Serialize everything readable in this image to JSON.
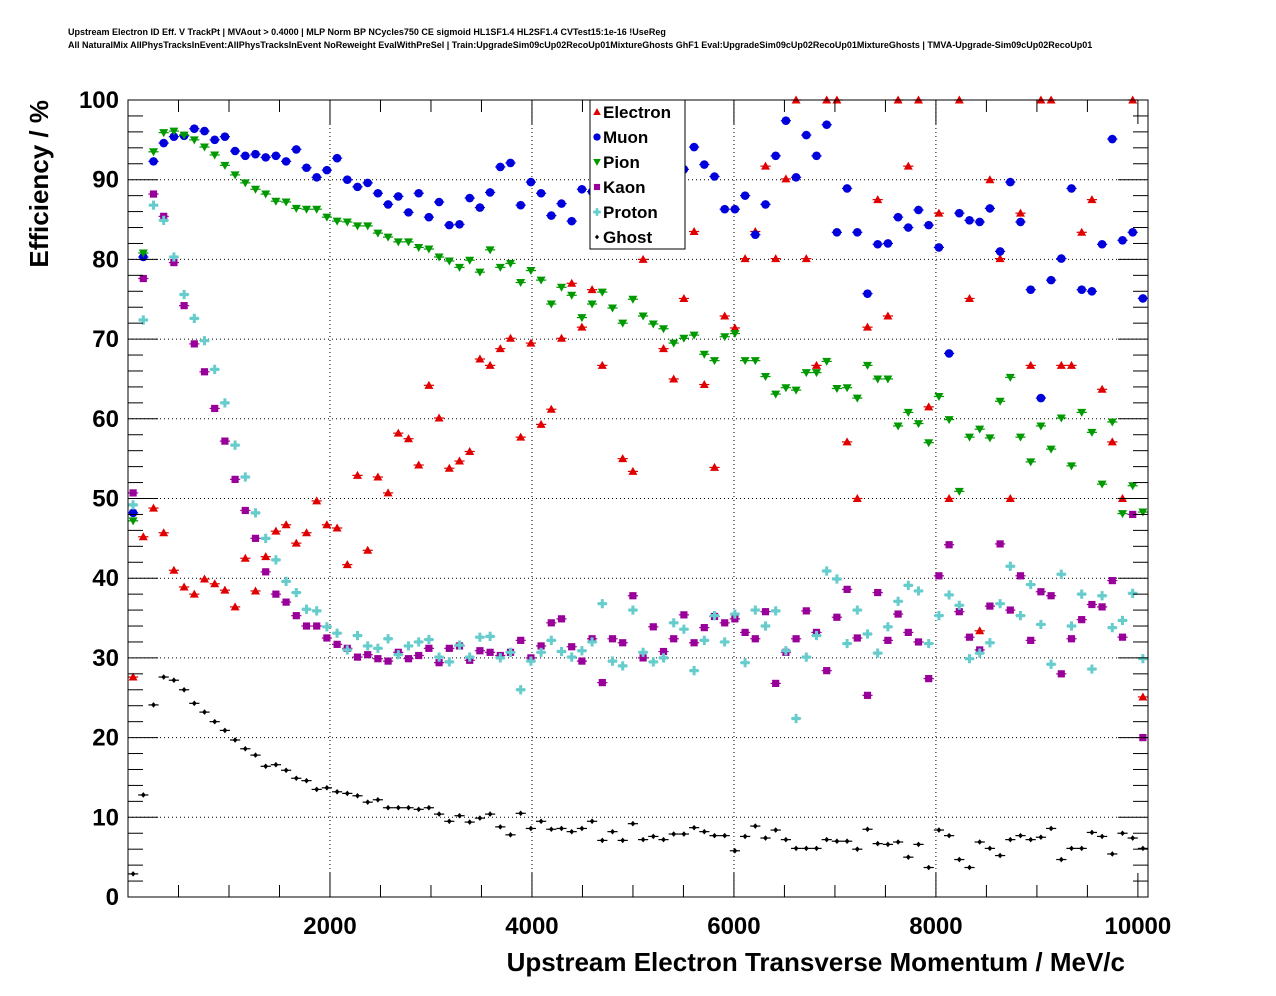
{
  "chart_data": {
    "type": "scatter",
    "title_lines": [
      "Upstream Electron ID Eff. V TrackPt | MVAout > 0.4000 | MLP Norm BP NCycles750 CE sigmoid HL1SF1.4 HL2SF1.4 CVTest15:1e-16 !UseReg",
      "All NaturalMix AllPhysTracksInEvent:AllPhysTracksInEvent NoReweight EvalWithPreSel | Train:UpgradeSim09cUp02RecoUp01MixtureGhosts GhF1 Eval:UpgradeSim09cUp02RecoUp01MixtureGhosts | TMVA-Upgrade-Sim09cUp02RecoUp01"
    ],
    "xlabel": "Upstream Electron Transverse Momentum / MeV/c",
    "ylabel": "Efficiency / %",
    "xlim": [
      0,
      10100
    ],
    "ylim": [
      0,
      100
    ],
    "xticks": [
      "2000",
      "4000",
      "6000",
      "8000",
      "10000"
    ],
    "yticks": [
      "0",
      "10",
      "20",
      "30",
      "40",
      "50",
      "60",
      "70",
      "80",
      "90",
      "100"
    ],
    "grid": true,
    "legend_position": "top-center",
    "bin_first_center": 50.5,
    "bin_width": 101,
    "series": [
      {
        "name": "Electron",
        "color": "#e00000",
        "marker": "triangle-up",
        "values": [
          27.6,
          45.2,
          48.8,
          45.7,
          41,
          38.9,
          38,
          39.9,
          39.3,
          38.5,
          36.4,
          42.5,
          38.4,
          42.7,
          45.9,
          46.7,
          44.4,
          45.7,
          49.7,
          46.7,
          46.3,
          41.7,
          52.9,
          43.5,
          52.7,
          50.7,
          58.2,
          57.5,
          54.2,
          64.2,
          60.1,
          53.8,
          54.7,
          55.9,
          67.5,
          66.7,
          68.8,
          70.1,
          57.7,
          69.5,
          59.3,
          61.2,
          70.1,
          77.0,
          71.5,
          76.2,
          66.7,
          87.5,
          55.0,
          53.4,
          80.0,
          83.3,
          68.8,
          65.0,
          75.1,
          83.5,
          64.3,
          53.9,
          72.9,
          71.4,
          80.1,
          83.5,
          91.7,
          80.1,
          90.1,
          100,
          80.1,
          66.7,
          100,
          100,
          57.1,
          50,
          71.5,
          87.5,
          72.9,
          100,
          91.7,
          100,
          61.5,
          85.8,
          50,
          100,
          75.1,
          33.4,
          90,
          80.1,
          50,
          85.8,
          66.7,
          100,
          100,
          66.7,
          66.7,
          83.4,
          87.5,
          63.7,
          57.1,
          50,
          100,
          25.1
        ]
      },
      {
        "name": "Muon",
        "color": "#0000dd",
        "marker": "circle",
        "values": [
          48.2,
          80.3,
          92.3,
          94.6,
          95.4,
          95.5,
          96.4,
          96.1,
          95.0,
          95.4,
          93.6,
          93.0,
          93.2,
          92.8,
          93.0,
          92.3,
          93.8,
          91.5,
          90.3,
          91.2,
          92.7,
          90.0,
          89.1,
          89.6,
          88.3,
          86.9,
          87.9,
          85.9,
          88.3,
          85.3,
          87.2,
          84.3,
          84.4,
          87.7,
          86.5,
          88.4,
          91.6,
          92.1,
          86.8,
          89.7,
          88.3,
          85.5,
          87.0,
          84.8,
          88.8,
          88.5,
          84.9,
          88.8,
          89.0,
          86.5,
          88.0,
          87.0,
          88.5,
          90.0,
          91.3,
          94.1,
          91.9,
          90.4,
          86.3,
          86.3,
          88.0,
          83.1,
          86.9,
          93.0,
          97.4,
          90.3,
          95.6,
          93.0,
          96.9,
          83.4,
          88.9,
          83.4,
          75.7,
          81.9,
          82.0,
          85.3,
          84.0,
          86.2,
          84.3,
          81.5,
          68.2,
          85.8,
          84.9,
          84.7,
          86.4,
          81.0,
          89.7,
          84.7,
          76.2,
          62.6,
          77.4,
          80.1,
          88.9,
          76.2,
          76.0,
          81.9,
          95.1,
          82.4,
          83.4,
          75.1
        ]
      },
      {
        "name": "Pion",
        "color": "#009900",
        "marker": "triangle-down",
        "values": [
          47.2,
          80.8,
          93.5,
          95.9,
          96.1,
          95.6,
          95.0,
          94.1,
          93.1,
          91.8,
          90.6,
          89.6,
          88.8,
          88.2,
          87.3,
          87.2,
          86.4,
          86.3,
          86.3,
          85.3,
          84.8,
          84.7,
          84.2,
          84.2,
          83.3,
          82.8,
          82.2,
          82.2,
          81.5,
          81.3,
          80.3,
          79.8,
          79.0,
          79.9,
          78.4,
          81.2,
          79.0,
          79.5,
          77.1,
          78.6,
          77.4,
          74.4,
          76.5,
          75.5,
          72.7,
          74.4,
          75.9,
          73.9,
          72.0,
          75.0,
          72.9,
          71.9,
          71.3,
          69.5,
          70.1,
          70.5,
          68.1,
          67.3,
          70.3,
          70.7,
          67.3,
          67.3,
          65.3,
          63.1,
          63.9,
          63.6,
          65.8,
          65.8,
          67.2,
          63.8,
          63.9,
          62.6,
          66.7,
          65.0,
          65.0,
          59.1,
          60.8,
          59.4,
          57.0,
          62.8,
          59.9,
          50.9,
          57.7,
          58.7,
          57.6,
          62.2,
          65.2,
          57.7,
          54.6,
          59.1,
          56.2,
          60.1,
          54.1,
          60.8,
          58.3,
          51.8,
          59.6,
          48.1,
          51.6,
          48.3
        ]
      },
      {
        "name": "Kaon",
        "color": "#990099",
        "marker": "square",
        "values": [
          50.7,
          77.6,
          88.2,
          85.4,
          79.6,
          74.2,
          69.4,
          65.9,
          61.3,
          57.2,
          52.4,
          48.5,
          45,
          40.8,
          38,
          37.0,
          35.3,
          34,
          34,
          32.5,
          31.7,
          31.2,
          30.1,
          30.4,
          29.9,
          29.6,
          30.7,
          29.9,
          30.3,
          31.2,
          29.4,
          31.2,
          31.5,
          29.7,
          30.9,
          30.7,
          30.3,
          30.7,
          32.2,
          30.0,
          31.5,
          34.4,
          34.9,
          31.4,
          29.6,
          32.4,
          26.9,
          32.4,
          31.9,
          37.8,
          30.0,
          33.9,
          30.8,
          32.4,
          35.4,
          31.9,
          33.8,
          35.2,
          34.4,
          34.9,
          33.2,
          32.4,
          35.8,
          26.8,
          30.7,
          32.4,
          35.9,
          33.2,
          28.4,
          35.1,
          38.6,
          32.5,
          25.3,
          38.2,
          32.2,
          35.5,
          33.2,
          32.0,
          27.4,
          40.3,
          44.2,
          35.8,
          32.6,
          31.0,
          36.5,
          44.3,
          36.0,
          40.3,
          32.2,
          38.3,
          37.8,
          28.0,
          32.4,
          34.8,
          36.7,
          36.4,
          39.7,
          32.6,
          48.0,
          20.0
        ]
      },
      {
        "name": "Proton",
        "color": "#66cccc",
        "marker": "cross",
        "values": [
          49.2,
          72.4,
          86.8,
          84.9,
          80.3,
          75.6,
          72.6,
          69.8,
          66.2,
          62.0,
          56.7,
          52.7,
          48.2,
          45.0,
          42.3,
          39.6,
          38.2,
          36.1,
          35.9,
          33.9,
          33.1,
          31.0,
          32.8,
          31.5,
          31.2,
          32.4,
          30.4,
          31.5,
          32.0,
          32.3,
          30.1,
          29.5,
          31.6,
          30.1,
          32.6,
          32.7,
          30.0,
          30.7,
          26.0,
          29.6,
          30.7,
          32.2,
          30.8,
          30.1,
          30.9,
          32.0,
          36.8,
          29.6,
          29.0,
          36.0,
          30.7,
          29.5,
          30.0,
          34.4,
          33.6,
          28.4,
          32.2,
          35.3,
          32.0,
          35.5,
          29.4,
          36.0,
          34.0,
          35.9,
          30.9,
          22.4,
          30.1,
          32.8,
          40.9,
          39.9,
          31.8,
          36.0,
          33.0,
          30.6,
          33.9,
          37.1,
          39.1,
          38.4,
          31.8,
          35.3,
          37.9,
          36.6,
          29.9,
          30.6,
          31.9,
          36.8,
          41.5,
          35.3,
          39.2,
          34.2,
          29.2,
          40.5,
          34.0,
          38.0,
          28.6,
          37.8,
          33.8,
          34.7,
          38.1,
          29.9
        ]
      },
      {
        "name": "Ghost",
        "color": "#000000",
        "marker": "diamond",
        "values": [
          2.9,
          12.8,
          24.1,
          27.6,
          27.2,
          26,
          24.3,
          23.2,
          22,
          20.9,
          19.7,
          18.6,
          17.8,
          16.4,
          16.6,
          15.9,
          14.9,
          14.6,
          13.5,
          13.7,
          13.2,
          13.0,
          12.7,
          11.9,
          12.2,
          11.2,
          11.2,
          11.2,
          11.0,
          11.2,
          10.4,
          9.5,
          10.2,
          9.4,
          9.9,
          10.4,
          8.8,
          7.8,
          10.5,
          8.6,
          9.5,
          8.5,
          8.6,
          8.2,
          8.6,
          9.5,
          7.1,
          8.2,
          7.1,
          9.2,
          7.2,
          7.6,
          7.2,
          7.9,
          7.9,
          8.7,
          8.2,
          7.7,
          7.7,
          5.8,
          7.6,
          8.9,
          7.4,
          8.4,
          7.2,
          6.1,
          6.1,
          6.1,
          7.2,
          7.0,
          7.0,
          6.0,
          8.5,
          6.7,
          6.6,
          6.9,
          5.0,
          6.6,
          3.7,
          8.4,
          7.7,
          4.7,
          3.7,
          6.9,
          6.1,
          5.2,
          7.2,
          7.7,
          7.2,
          7.5,
          8.6,
          4.7,
          6.1,
          6.1,
          8.1,
          7.6,
          5.4,
          8.0,
          7.4,
          6.1
        ]
      }
    ]
  }
}
